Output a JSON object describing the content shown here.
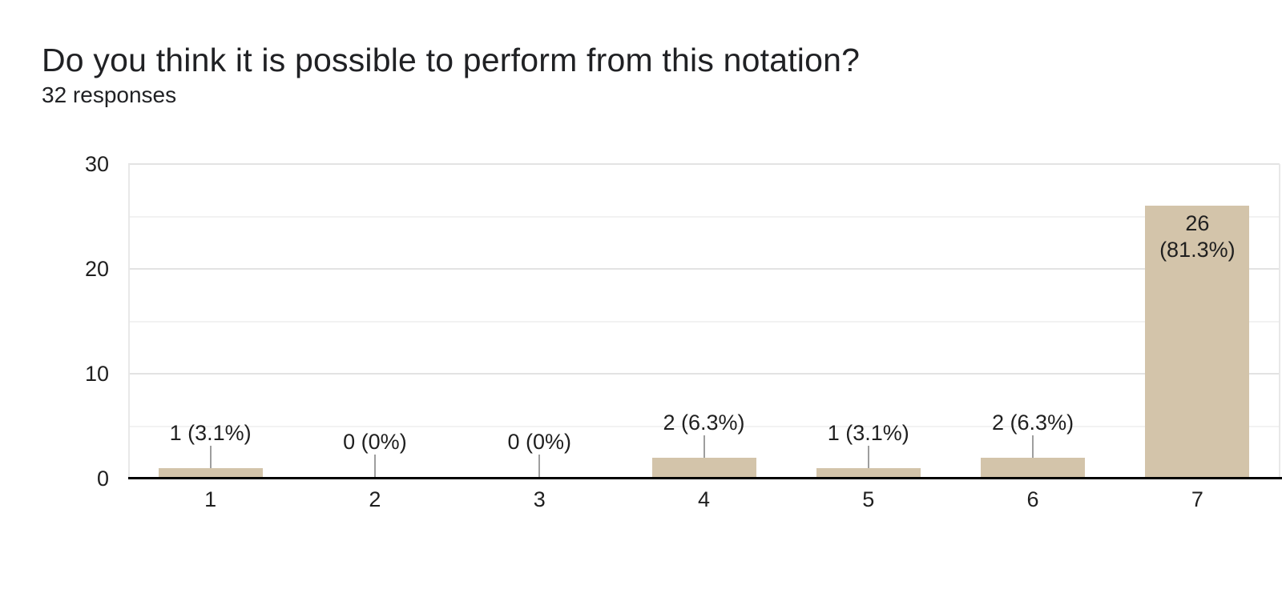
{
  "header": {
    "title": "Do you think it is possible to perform from this notation?",
    "responses_label": "32 responses"
  },
  "colors": {
    "bar": "#d3c4aa",
    "axis": "#000000",
    "gridline_major": "#e3e3e3",
    "gridline_minor": "#f2f2f2",
    "plot_border": "#e8e8e8",
    "stem": "#9e9e9e",
    "chart_text": "#1f1f1f",
    "title_text": "#202124",
    "background": "#ffffff"
  },
  "chart_data": {
    "type": "bar",
    "title": "Do you think it is possible to perform from this notation?",
    "subtitle": "32 responses",
    "categories": [
      "1",
      "2",
      "3",
      "4",
      "5",
      "6",
      "7"
    ],
    "values": [
      1,
      0,
      0,
      2,
      1,
      2,
      26
    ],
    "labels": [
      "1 (3.1%)",
      "0 (0%)",
      "0 (0%)",
      "2 (6.3%)",
      "1 (3.1%)",
      "2 (6.3%)",
      "26 (81.3%)"
    ],
    "label_placement": [
      "out",
      "out",
      "out",
      "out",
      "out",
      "out",
      "in"
    ],
    "xlabel": "",
    "ylabel": "",
    "ylim": [
      0,
      30
    ],
    "yticks": [
      0,
      10,
      20,
      30
    ],
    "minor_grid_step": 5,
    "grid": "horizontal",
    "legend": "none"
  }
}
